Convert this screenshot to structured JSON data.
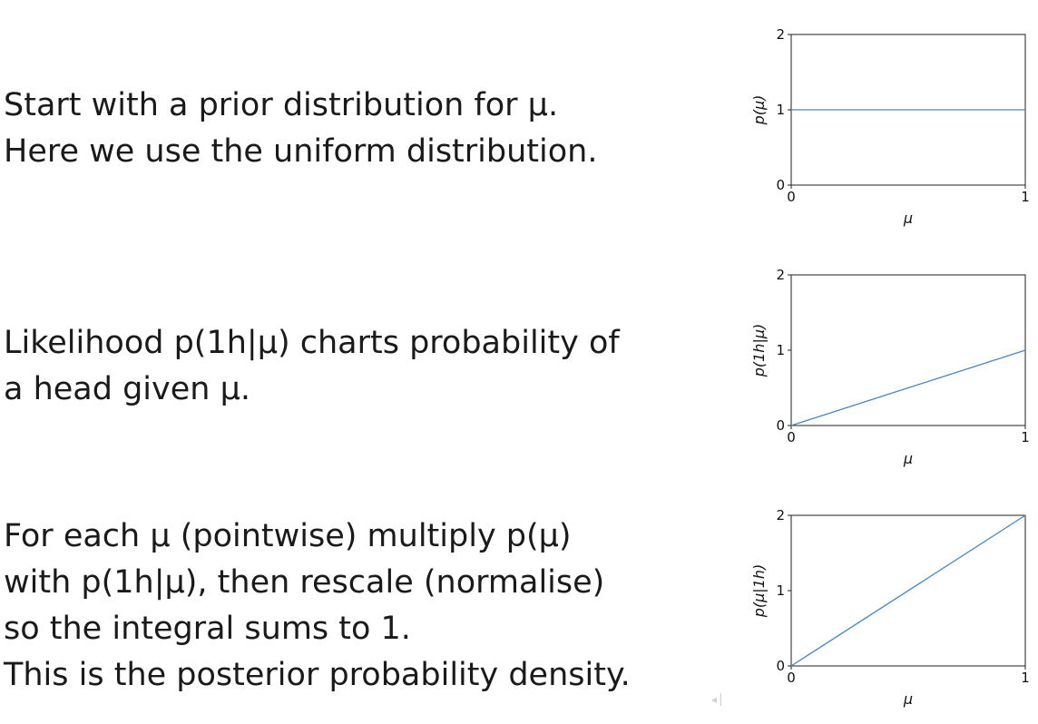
{
  "text": {
    "p1_line1": "Start with a prior distribution for μ.",
    "p1_line2": "Here we use the uniform distribution.",
    "p2_line1": "Likelihood p(1h|μ) charts probability of",
    "p2_line2": "a head given μ.",
    "p3_line1": "For each μ (pointwise) multiply p(μ)",
    "p3_line2": "with p(1h|μ), then rescale (normalise)",
    "p3_line3": "so the integral sums to 1.",
    "p3_line4": "This is the posterior probability density."
  },
  "nav": {
    "glyph": "◂ ▏"
  },
  "chart_data": [
    {
      "type": "line",
      "xlabel": "μ",
      "ylabel": "p(μ)",
      "xlim": [
        0,
        1
      ],
      "ylim": [
        0,
        2
      ],
      "xticks": [
        "0",
        "1"
      ],
      "yticks": [
        "0",
        "1",
        "2"
      ],
      "series": [
        {
          "x": [
            0,
            1
          ],
          "y": [
            1,
            1
          ],
          "color": "#4a86c0"
        }
      ]
    },
    {
      "type": "line",
      "xlabel": "μ",
      "ylabel": "p(1h|μ)",
      "xlim": [
        0,
        1
      ],
      "ylim": [
        0,
        2
      ],
      "xticks": [
        "0",
        "1"
      ],
      "yticks": [
        "0",
        "1",
        "2"
      ],
      "series": [
        {
          "x": [
            0,
            1
          ],
          "y": [
            0,
            1
          ],
          "color": "#4a86c0"
        }
      ]
    },
    {
      "type": "line",
      "xlabel": "μ",
      "ylabel": "p(μ|1h)",
      "xlim": [
        0,
        1
      ],
      "ylim": [
        0,
        2
      ],
      "xticks": [
        "0",
        "1"
      ],
      "yticks": [
        "0",
        "1",
        "2"
      ],
      "series": [
        {
          "x": [
            0,
            1
          ],
          "y": [
            0,
            2
          ],
          "color": "#4a86c0"
        }
      ]
    }
  ]
}
